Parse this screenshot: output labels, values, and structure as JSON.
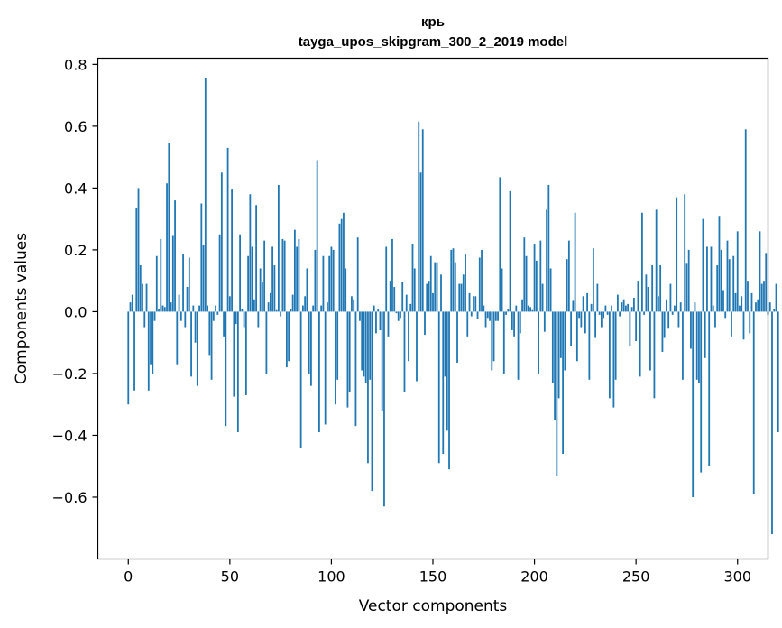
{
  "chart_data": {
    "type": "bar",
    "title": "крь",
    "subtitle": "tayga_upos_skipgram_300_2_2019 model",
    "xlabel": "Vector components",
    "ylabel": "Components values",
    "xlim": [
      -15,
      315
    ],
    "ylim": [
      -0.8,
      0.82
    ],
    "xticks": [
      0,
      50,
      100,
      150,
      200,
      250,
      300
    ],
    "xtick_labels": [
      "0",
      "50",
      "100",
      "150",
      "200",
      "250",
      "300"
    ],
    "yticks": [
      -0.6,
      -0.4,
      -0.2,
      0.0,
      0.2,
      0.4,
      0.6,
      0.8
    ],
    "ytick_labels": [
      "−0.6",
      "−0.4",
      "−0.2",
      "0.0",
      "0.2",
      "0.4",
      "0.6",
      "0.8"
    ],
    "bar_color": "#1f77b4",
    "values": [
      -0.3,
      0.03,
      0.055,
      -0.255,
      0.335,
      0.4,
      0.15,
      0.09,
      -0.05,
      0.09,
      -0.255,
      -0.17,
      -0.2,
      -0.03,
      0.18,
      0.01,
      0.235,
      0.02,
      0.015,
      0.415,
      0.545,
      0.03,
      0.245,
      0.36,
      -0.17,
      0.055,
      -0.03,
      0.185,
      -0.05,
      0.08,
      0.175,
      -0.21,
      0.02,
      -0.1,
      -0.24,
      0.02,
      0.35,
      0.215,
      0.755,
      0.02,
      -0.14,
      -0.22,
      -0.03,
      0.02,
      -0.01,
      0.25,
      0.45,
      -0.08,
      -0.37,
      0.53,
      0.05,
      0.395,
      -0.275,
      -0.04,
      -0.39,
      0.25,
      0.01,
      -0.05,
      -0.27,
      0.18,
      0.38,
      0.21,
      0.04,
      0.345,
      -0.05,
      0.14,
      0.095,
      0.23,
      -0.2,
      0.03,
      0.06,
      0.21,
      0.15,
      0.005,
      0.41,
      -0.015,
      0.235,
      0.23,
      -0.18,
      -0.16,
      0.01,
      0.055,
      0.265,
      0.21,
      0.235,
      -0.44,
      0.02,
      0.05,
      0.14,
      -0.2,
      -0.24,
      0.02,
      0.2,
      0.49,
      -0.39,
      0.02,
      0.18,
      -0.365,
      0.03,
      0.18,
      0.21,
      0.2,
      -0.3,
      -0.22,
      0.285,
      0.3,
      0.32,
      0.14,
      -0.31,
      -0.26,
      0.05,
      0.04,
      -0.37,
      0.24,
      -0.03,
      -0.19,
      -0.21,
      -0.23,
      -0.49,
      -0.22,
      -0.58,
      0.02,
      -0.07,
      0.01,
      -0.06,
      -0.32,
      -0.63,
      0.21,
      -0.08,
      0.1,
      0.235,
      0.08,
      -0.005,
      -0.03,
      -0.02,
      0.095,
      -0.26,
      0.055,
      -0.16,
      0.025,
      0.22,
      0.14,
      -0.225,
      0.615,
      0.45,
      0.59,
      -0.075,
      0.09,
      0.1,
      0.18,
      0.06,
      0.16,
      0.16,
      -0.49,
      0.12,
      -0.46,
      -0.21,
      -0.385,
      -0.51,
      0.2,
      0.205,
      0.16,
      -0.165,
      0.09,
      0.09,
      0.12,
      0.185,
      -0.08,
      0.06,
      -0.015,
      0.05,
      0.05,
      -0.025,
      0.175,
      0.2,
      0.02,
      -0.05,
      -0.02,
      -0.03,
      -0.19,
      -0.16,
      -0.03,
      -0.03,
      0.435,
      0.14,
      -0.2,
      -0.01,
      0.01,
      0.39,
      -0.06,
      -0.08,
      0.02,
      -0.22,
      -0.07,
      0.04,
      0.24,
      0.18,
      0.02,
      0.015,
      0.005,
      0.22,
      0.165,
      -0.2,
      0.23,
      0.09,
      -0.065,
      0.33,
      0.41,
      0.14,
      -0.23,
      -0.35,
      -0.53,
      -0.28,
      -0.15,
      -0.46,
      -0.19,
      0.17,
      0.23,
      -0.11,
      0.035,
      0.32,
      -0.16,
      -0.02,
      -0.05,
      0.05,
      -0.07,
      0.06,
      -0.22,
      0.025,
      0.205,
      -0.085,
      0.09,
      -0.01,
      -0.05,
      -0.02,
      0.02,
      -0.01,
      -0.28,
      0.02,
      -0.31,
      -0.22,
      0.055,
      -0.015,
      0.03,
      0.04,
      0.02,
      0.025,
      -0.11,
      0.015,
      0.045,
      -0.095,
      0.1,
      -0.21,
      0.32,
      -0.01,
      0.12,
      0.08,
      -0.19,
      0.15,
      -0.28,
      0.33,
      0.05,
      0.15,
      -0.13,
      -0.085,
      0.04,
      -0.055,
      0.09,
      -0.01,
      0.02,
      0.37,
      -0.05,
      0.03,
      -0.22,
      0.38,
      0.155,
      0.2,
      -0.12,
      -0.6,
      0.03,
      -0.22,
      -0.23,
      -0.52,
      0.3,
      -0.15,
      0.21,
      -0.5,
      0.21,
      0.02,
      -0.05,
      0.15,
      0.31,
      0.2,
      0.07,
      -0.02,
      0.23,
      0.17,
      -0.08,
      0.18,
      0.06,
      0.26,
      0.02,
      0.05,
      -0.09,
      0.59,
      0.1,
      -0.07,
      0.06,
      -0.59,
      0.03,
      0.04,
      0.26,
      0.09,
      0.1,
      0.19,
      -0.01,
      0.03,
      -0.72,
      0.01,
      0.09,
      -0.39
    ]
  }
}
